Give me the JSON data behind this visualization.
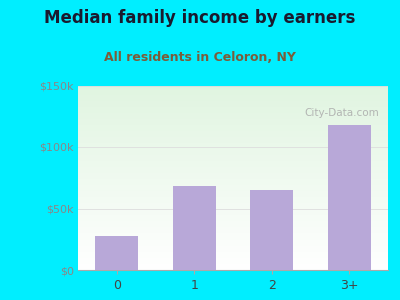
{
  "title": "Median family income by earners",
  "subtitle": "All residents in Celoron, NY",
  "categories": [
    "0",
    "1",
    "2",
    "3+"
  ],
  "values": [
    28000,
    68000,
    65000,
    118000
  ],
  "bar_color": "#b8a8d8",
  "ylim": [
    0,
    150000
  ],
  "yticks": [
    0,
    50000,
    100000,
    150000
  ],
  "ytick_labels": [
    "$0",
    "$50k",
    "$100k",
    "$150k"
  ],
  "background_outer": "#00eeff",
  "title_color": "#1a1a2e",
  "subtitle_color": "#7a5c3a",
  "title_fontsize": 12,
  "subtitle_fontsize": 9,
  "watermark": "City-Data.com",
  "watermark_color": "#aaaaaa",
  "tick_color": "#888888",
  "grid_color": "#dddddd"
}
